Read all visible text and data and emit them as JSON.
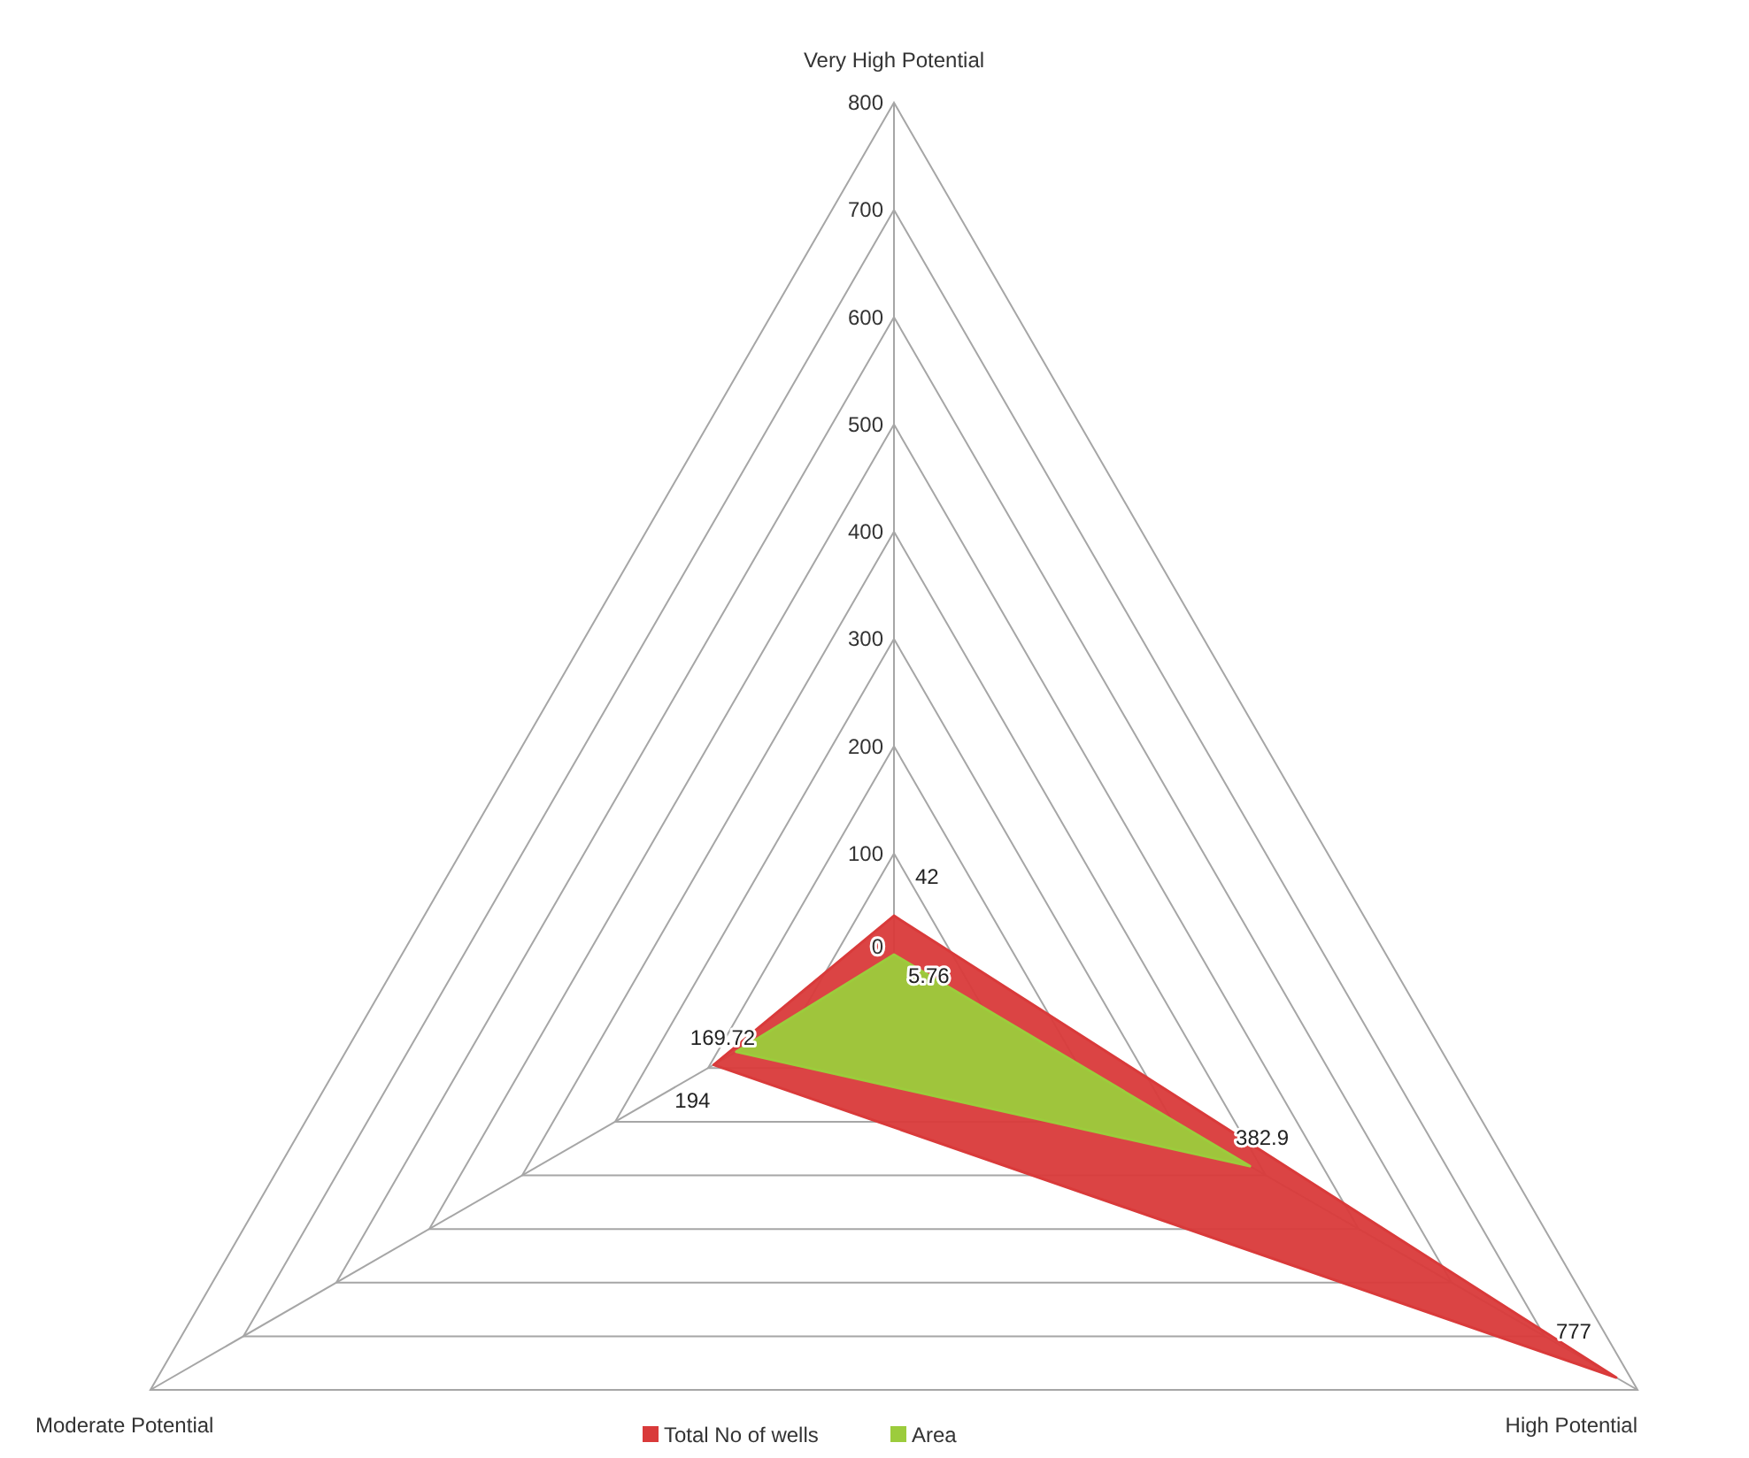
{
  "chart_data": {
    "type": "radar",
    "categories": [
      "Very High Potential",
      "High Potential",
      "Moderate Potential"
    ],
    "series": [
      {
        "name": "Total No of wells",
        "color": "#d93a3a",
        "values": [
          42,
          777,
          194
        ]
      },
      {
        "name": "Area",
        "color": "#9ccc3c",
        "values": [
          5.76,
          382.9,
          169.72
        ]
      }
    ],
    "ylim": [
      0,
      800
    ],
    "yticks": [
      0,
      100,
      200,
      300,
      400,
      500,
      600,
      700,
      800
    ],
    "grid": true,
    "data_labels": true,
    "legend": "bottom"
  }
}
